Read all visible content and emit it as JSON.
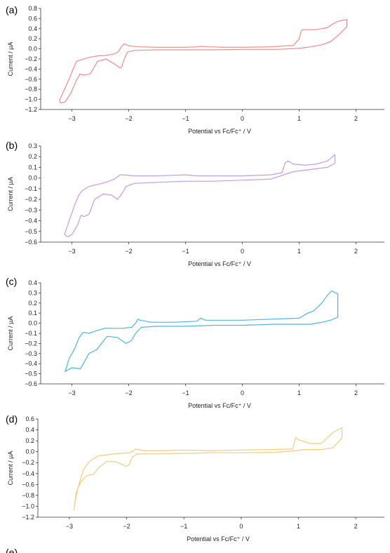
{
  "chart_data": [
    {
      "type": "line",
      "panel_label": "(a)",
      "xlabel": "Potential vs Fc/Fc⁺ / V",
      "ylabel": "Current / µA",
      "xlim": [
        -3.55,
        2.5
      ],
      "ylim": [
        -1.2,
        0.8
      ],
      "xticks": [
        -3,
        -2,
        -1,
        0,
        1,
        2
      ],
      "yticks": [
        0.8,
        0.6,
        0.4,
        0.2,
        0.0,
        -0.2,
        -0.4,
        -0.6,
        -0.8,
        -1.0,
        -1.2
      ],
      "ytick_labels": [
        "0.8",
        "0.6",
        "0.4",
        "0.2",
        "0.0",
        "−0.2",
        "−0.4",
        "−0.6",
        "−0.8",
        "−1.0",
        "−1.2"
      ],
      "color": "#f08c8c",
      "series": [
        {
          "x": [
            -3.22,
            -3.15,
            -3.05,
            -2.98,
            -2.92,
            -2.85,
            -2.7,
            -2.55,
            -2.4,
            -2.25,
            -2.18,
            -2.13,
            -2.08,
            -2.0,
            -1.8,
            -1.5,
            -1.0,
            -0.78,
            -0.72,
            -0.6,
            -0.3,
            0.0,
            0.5,
            0.9,
            1.0,
            1.04,
            1.08,
            1.3,
            1.5,
            1.6,
            1.7,
            1.84,
            1.84,
            1.7,
            1.55,
            1.4,
            1.2,
            1.0,
            0.6,
            0.0,
            -0.5,
            -1.0,
            -1.5,
            -1.9,
            -2.02,
            -2.08,
            -2.12,
            -2.15,
            -2.25,
            -2.4,
            -2.55,
            -2.68,
            -2.8,
            -2.86,
            -2.92,
            -3.02,
            -3.12,
            -3.2,
            -3.22
          ],
          "y": [
            -1.02,
            -0.85,
            -0.6,
            -0.4,
            -0.25,
            -0.22,
            -0.17,
            -0.14,
            -0.13,
            -0.1,
            -0.05,
            0.04,
            0.1,
            0.06,
            0.04,
            0.03,
            0.03,
            0.04,
            0.05,
            0.04,
            0.03,
            0.03,
            0.04,
            0.07,
            0.2,
            0.37,
            0.38,
            0.38,
            0.42,
            0.5,
            0.55,
            0.58,
            0.44,
            0.28,
            0.14,
            0.08,
            0.04,
            0.01,
            -0.01,
            -0.01,
            -0.02,
            -0.02,
            -0.02,
            -0.03,
            -0.06,
            -0.2,
            -0.35,
            -0.38,
            -0.3,
            -0.2,
            -0.25,
            -0.5,
            -0.52,
            -0.5,
            -0.62,
            -0.88,
            -1.05,
            -1.07,
            -1.02
          ]
        }
      ]
    },
    {
      "type": "line",
      "panel_label": "(b)",
      "xlabel": "Potential vs Fc/Fc⁺ / V",
      "ylabel": "Current / µA",
      "xlim": [
        -3.55,
        2.5
      ],
      "ylim": [
        -0.6,
        0.3
      ],
      "xticks": [
        -3,
        -2,
        -1,
        0,
        1,
        2
      ],
      "yticks": [
        0.3,
        0.2,
        0.1,
        0.0,
        -0.1,
        -0.2,
        -0.3,
        -0.4,
        -0.5,
        -0.6
      ],
      "ytick_labels": [
        "0.3",
        "0.2",
        "0.1",
        "0.0",
        "−0.1",
        "−0.2",
        "−0.3",
        "−0.4",
        "−0.5",
        "−0.6"
      ],
      "color": "#c79ae8",
      "series": [
        {
          "x": [
            -3.13,
            -3.05,
            -2.95,
            -2.88,
            -2.82,
            -2.7,
            -2.55,
            -2.4,
            -2.3,
            -2.25,
            -2.2,
            -2.15,
            -2.1,
            -1.9,
            -1.5,
            -1.0,
            -0.8,
            -0.5,
            0.0,
            0.5,
            0.7,
            0.75,
            0.8,
            0.9,
            1.1,
            1.3,
            1.5,
            1.63,
            1.63,
            1.5,
            1.2,
            0.9,
            0.5,
            0.0,
            -0.5,
            -1.0,
            -1.5,
            -1.9,
            -2.05,
            -2.1,
            -2.15,
            -2.2,
            -2.3,
            -2.45,
            -2.6,
            -2.7,
            -2.78,
            -2.84,
            -2.9,
            -3.0,
            -3.08,
            -3.13
          ],
          "y": [
            -0.53,
            -0.4,
            -0.25,
            -0.16,
            -0.12,
            -0.08,
            -0.06,
            -0.04,
            -0.02,
            -0.01,
            0.01,
            0.03,
            0.03,
            0.02,
            0.02,
            0.03,
            0.02,
            0.02,
            0.02,
            0.03,
            0.05,
            0.14,
            0.16,
            0.13,
            0.12,
            0.13,
            0.16,
            0.22,
            0.14,
            0.1,
            0.08,
            0.06,
            -0.01,
            -0.02,
            -0.03,
            -0.03,
            -0.04,
            -0.05,
            -0.08,
            -0.13,
            -0.17,
            -0.2,
            -0.16,
            -0.15,
            -0.2,
            -0.34,
            -0.36,
            -0.35,
            -0.44,
            -0.53,
            -0.55,
            -0.53
          ]
        }
      ]
    },
    {
      "type": "line",
      "panel_label": "(c)",
      "xlabel": "Potential vs Fc/Fc⁺ / V",
      "ylabel": "Current / µA",
      "xlim": [
        -3.55,
        2.5
      ],
      "ylim": [
        -0.6,
        0.4
      ],
      "xticks": [
        -3,
        -2,
        -1,
        0,
        1,
        2
      ],
      "yticks": [
        0.4,
        0.3,
        0.2,
        0.1,
        0.0,
        -0.1,
        -0.2,
        -0.3,
        -0.4,
        -0.5,
        -0.6
      ],
      "ytick_labels": [
        "0.4",
        "0.3",
        "0.2",
        "0.1",
        "0.0",
        "−0.1",
        "−0.2",
        "−0.3",
        "−0.4",
        "−0.5",
        "−0.6"
      ],
      "color": "#4fb3e6",
      "series": [
        {
          "x": [
            -3.12,
            -3.05,
            -2.95,
            -2.88,
            -2.82,
            -2.78,
            -2.7,
            -2.6,
            -2.48,
            -2.42,
            -2.3,
            -2.1,
            -1.95,
            -1.88,
            -1.84,
            -1.8,
            -1.6,
            -1.2,
            -0.8,
            -0.73,
            -0.65,
            -0.3,
            0.0,
            0.5,
            1.0,
            1.15,
            1.25,
            1.4,
            1.5,
            1.57,
            1.68,
            1.68,
            1.55,
            1.4,
            1.2,
            1.0,
            0.6,
            0.0,
            -0.5,
            -1.0,
            -1.5,
            -1.78,
            -1.88,
            -1.95,
            -2.05,
            -2.2,
            -2.38,
            -2.48,
            -2.56,
            -2.7,
            -2.85,
            -3.0,
            -3.1,
            -3.12
          ],
          "y": [
            -0.48,
            -0.35,
            -0.25,
            -0.15,
            -0.1,
            -0.09,
            -0.1,
            -0.08,
            -0.06,
            -0.05,
            -0.05,
            -0.05,
            -0.04,
            0.0,
            0.04,
            0.03,
            0.01,
            0.01,
            0.02,
            0.05,
            0.03,
            0.03,
            0.03,
            0.04,
            0.05,
            0.1,
            0.12,
            0.2,
            0.28,
            0.32,
            0.29,
            0.06,
            0.03,
            0.01,
            -0.01,
            -0.01,
            -0.01,
            -0.02,
            -0.02,
            -0.03,
            -0.03,
            -0.04,
            -0.1,
            -0.17,
            -0.2,
            -0.14,
            -0.13,
            -0.2,
            -0.26,
            -0.3,
            -0.45,
            -0.44,
            -0.47,
            -0.48
          ]
        }
      ]
    },
    {
      "type": "line",
      "panel_label": "(d)",
      "xlabel": "Potential vs Fc/Fc⁺ / V",
      "ylabel": "Current / µA",
      "xlim": [
        -3.55,
        2.5
      ],
      "ylim": [
        -1.2,
        0.6
      ],
      "xticks": [
        -3,
        -2,
        -1,
        0,
        1,
        2
      ],
      "yticks": [
        0.6,
        0.4,
        0.2,
        0.0,
        -0.2,
        -0.4,
        -0.6,
        -0.8,
        -1.0,
        -1.2
      ],
      "ytick_labels": [
        "0.6",
        "0.4",
        "0.2",
        "0.0",
        "−0.2",
        "−0.4",
        "−0.6",
        "−0.8",
        "−1.0",
        "−1.2"
      ],
      "color": "#f2cc7e",
      "series": [
        {
          "x": [
            -2.92,
            -2.88,
            -2.82,
            -2.75,
            -2.65,
            -2.5,
            -2.3,
            -2.1,
            -1.95,
            -1.9,
            -1.85,
            -1.7,
            -1.3,
            -1.0,
            -0.5,
            0.0,
            0.5,
            0.9,
            0.95,
            1.0,
            1.2,
            1.4,
            1.6,
            1.76,
            1.76,
            1.6,
            1.4,
            1.1,
            0.97,
            0.6,
            0.0,
            -0.5,
            -1.0,
            -1.5,
            -1.82,
            -1.9,
            -1.95,
            -2.0,
            -2.2,
            -2.35,
            -2.5,
            -2.58,
            -2.68,
            -2.8,
            -2.88,
            -2.92
          ],
          "y": [
            -1.07,
            -0.8,
            -0.55,
            -0.32,
            -0.18,
            -0.08,
            -0.05,
            -0.03,
            -0.02,
            0.0,
            0.05,
            0.02,
            0.02,
            0.03,
            0.02,
            0.03,
            0.04,
            0.05,
            0.26,
            0.22,
            0.15,
            0.15,
            0.35,
            0.44,
            0.25,
            0.07,
            0.04,
            0.04,
            0.02,
            -0.01,
            -0.02,
            -0.02,
            -0.03,
            -0.04,
            -0.04,
            -0.1,
            -0.22,
            -0.27,
            -0.18,
            -0.18,
            -0.3,
            -0.42,
            -0.43,
            -0.55,
            -0.75,
            -1.07
          ]
        }
      ]
    }
  ],
  "footer": {
    "partial_label": "(e)"
  }
}
